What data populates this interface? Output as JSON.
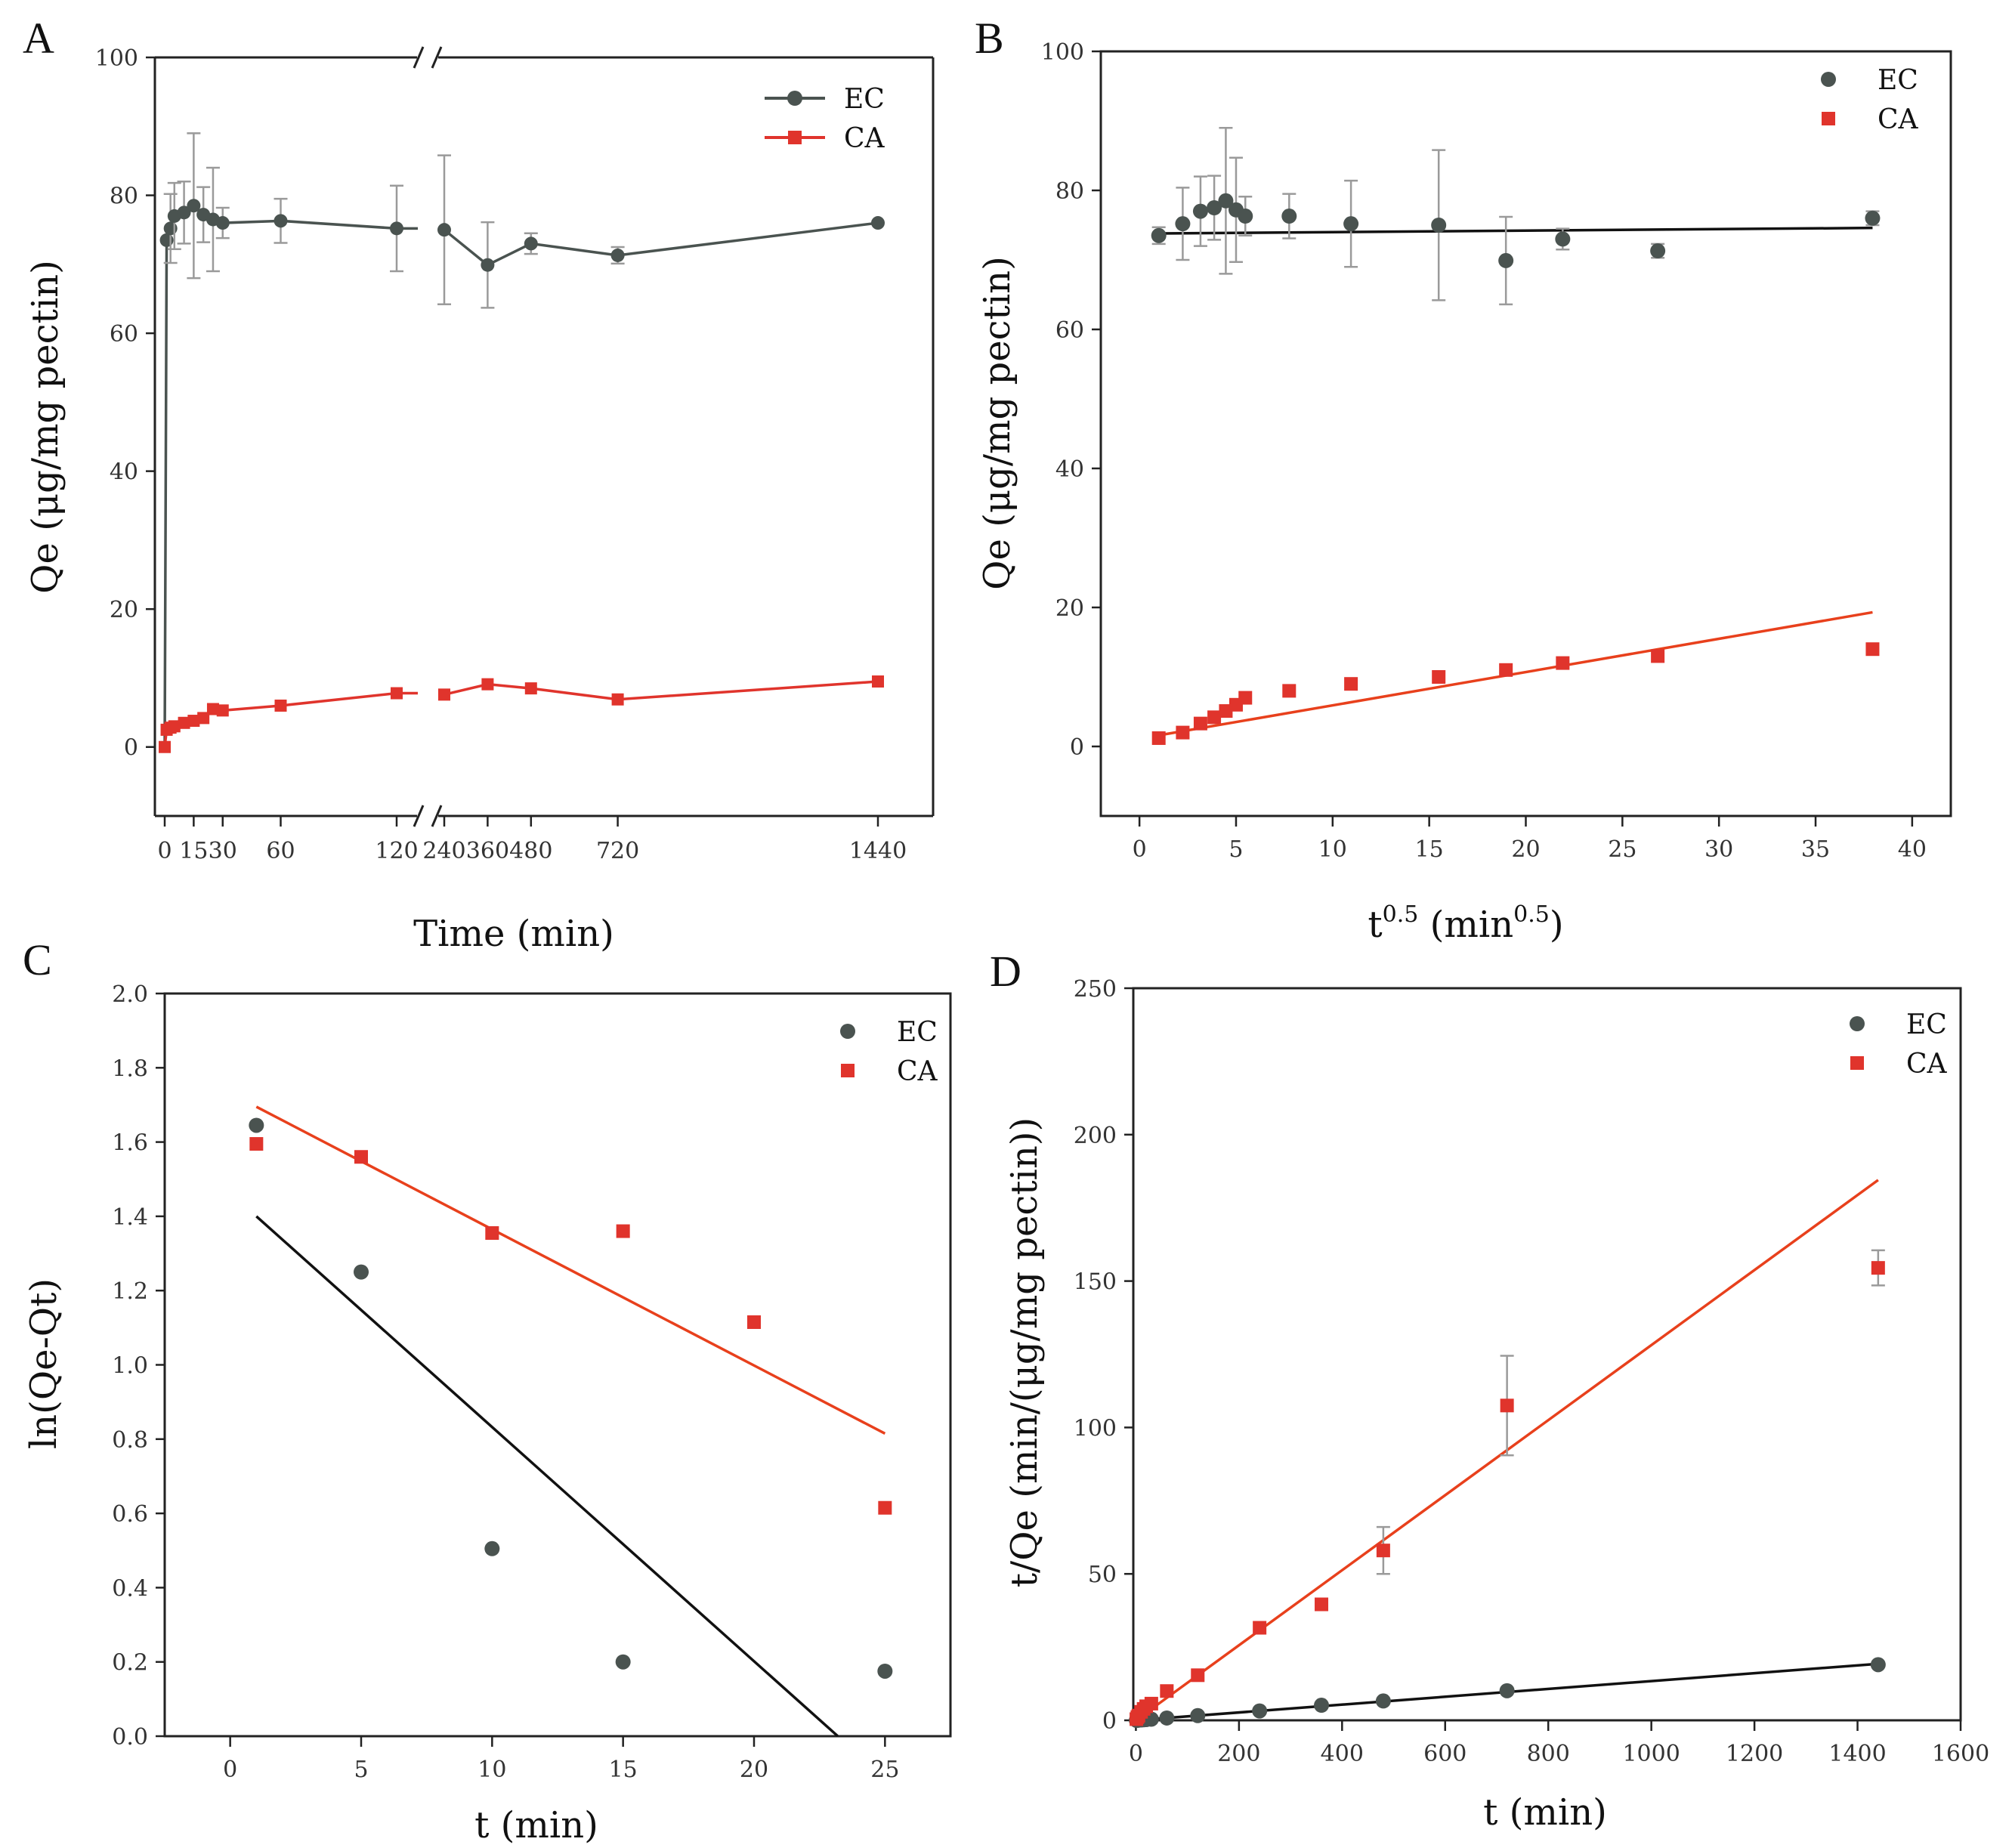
{
  "colors": {
    "ec": "#4a5350",
    "ca": "#e0342c",
    "fit_ec": "#111111",
    "fit_ca": "#e8401c",
    "err": "#9a9a9a"
  },
  "chart_data": [
    {
      "panel": "A",
      "type": "line",
      "xlabel": "Time (min)",
      "ylabel": "Qe (μg/mg pectin)",
      "ylim": [
        -10,
        100
      ],
      "y_ticks": [
        "0",
        "20",
        "40",
        "60",
        "80",
        "100"
      ],
      "x_axis": "broken",
      "x_tick_labels": [
        "0",
        "15",
        "30",
        "60",
        "120",
        "240",
        "360",
        "480",
        "720",
        "1440"
      ],
      "legend": [
        "EC",
        "CA"
      ],
      "legend_position": "top-right",
      "grid": false,
      "series": [
        {
          "name": "EC",
          "marker": "circle",
          "x": [
            0,
            1,
            3,
            5,
            10,
            15,
            20,
            25,
            30,
            60,
            120,
            240,
            360,
            480,
            720,
            1440
          ],
          "y": [
            0,
            73.5,
            75.2,
            77,
            77.5,
            78.5,
            77.2,
            76.5,
            76,
            76.3,
            75.2,
            75,
            69.9,
            73,
            71.3,
            76
          ],
          "err": [
            0,
            0,
            5,
            4.8,
            4.5,
            10.5,
            4,
            7.5,
            2.2,
            3.2,
            6.2,
            10.8,
            6.2,
            1.5,
            1.2,
            0
          ]
        },
        {
          "name": "CA",
          "marker": "square",
          "x": [
            0,
            1,
            3,
            5,
            10,
            15,
            20,
            25,
            30,
            60,
            120,
            240,
            360,
            480,
            720,
            1440
          ],
          "y": [
            0,
            2.5,
            2.8,
            3,
            3.5,
            3.8,
            4.2,
            5.5,
            5.3,
            6,
            7.8,
            7.6,
            9.1,
            8.5,
            6.9,
            9.5
          ],
          "err": []
        }
      ]
    },
    {
      "panel": "B",
      "type": "scatter",
      "xlabel": "t^0.5 (min^0.5)",
      "ylabel": "Qe (μg/mg pectin)",
      "xlim": [
        -2,
        42
      ],
      "ylim": [
        -10,
        100
      ],
      "x_ticks": [
        "0",
        "5",
        "10",
        "15",
        "20",
        "25",
        "30",
        "35",
        "40"
      ],
      "y_ticks": [
        "0",
        "20",
        "40",
        "60",
        "80",
        "100"
      ],
      "legend": [
        "EC",
        "CA"
      ],
      "legend_position": "top-right",
      "grid": false,
      "series": [
        {
          "name": "EC",
          "marker": "circle",
          "x": [
            1,
            2.24,
            3.16,
            3.87,
            4.47,
            5,
            5.48,
            7.75,
            10.95,
            15.49,
            18.97,
            21.91,
            26.83,
            37.95
          ],
          "y": [
            73.5,
            75.2,
            77,
            77.5,
            78.5,
            77.2,
            76.3,
            76.3,
            75.2,
            75,
            69.9,
            73,
            71.3,
            76
          ],
          "err": [
            1.2,
            5.2,
            5,
            4.6,
            10.5,
            7.5,
            2.8,
            3.2,
            6.2,
            10.8,
            6.3,
            1.5,
            1,
            1
          ],
          "fit": [
            [
              1,
              73.8
            ],
            [
              37.95,
              74.6
            ]
          ]
        },
        {
          "name": "CA",
          "marker": "square",
          "x": [
            1,
            2.24,
            3.16,
            3.87,
            4.47,
            5,
            5.48,
            7.75,
            10.95,
            15.49,
            18.97,
            21.91,
            26.83,
            37.95
          ],
          "y": [
            1.2,
            2,
            3.3,
            4.2,
            5.1,
            6,
            7,
            8,
            9,
            10,
            11,
            12,
            13,
            14
          ],
          "err": [],
          "fit": [
            [
              1,
              1.6
            ],
            [
              37.95,
              19.3
            ]
          ]
        }
      ]
    },
    {
      "panel": "C",
      "type": "scatter",
      "xlabel": "t (min)",
      "ylabel": "ln(Qe-Qt)",
      "xlim": [
        -2.5,
        27.5
      ],
      "ylim": [
        0,
        2.0
      ],
      "x_ticks": [
        "0",
        "5",
        "10",
        "15",
        "20",
        "25"
      ],
      "y_ticks": [
        "0.0",
        "0.2",
        "0.4",
        "0.6",
        "0.8",
        "1.0",
        "1.2",
        "1.4",
        "1.6",
        "1.8",
        "2.0"
      ],
      "legend": [
        "EC",
        "CA"
      ],
      "legend_position": "top-right",
      "grid": false,
      "series": [
        {
          "name": "EC",
          "marker": "circle",
          "x": [
            1,
            5,
            10,
            15,
            25
          ],
          "y": [
            1.645,
            1.25,
            0.505,
            0.2,
            0.175
          ],
          "fit": [
            [
              1,
              1.4
            ],
            [
              23.2,
              0
            ]
          ]
        },
        {
          "name": "CA",
          "marker": "square",
          "x": [
            1,
            5,
            10,
            15,
            20,
            25
          ],
          "y": [
            1.595,
            1.56,
            1.355,
            1.36,
            1.115,
            0.615
          ],
          "fit": [
            [
              1,
              1.695
            ],
            [
              25,
              0.815
            ]
          ]
        }
      ]
    },
    {
      "panel": "D",
      "type": "scatter",
      "xlabel": "t (min)",
      "ylabel": "t/Qe (min/(μg/mg pectin))",
      "xlim": [
        -5,
        1600
      ],
      "ylim": [
        0,
        250
      ],
      "x_ticks": [
        "0",
        "200",
        "400",
        "600",
        "800",
        "1000",
        "1200",
        "1400",
        "1600"
      ],
      "y_ticks": [
        "0",
        "50",
        "100",
        "150",
        "200",
        "250"
      ],
      "legend": [
        "EC",
        "CA"
      ],
      "legend_position": "top-right",
      "grid": false,
      "series": [
        {
          "name": "EC",
          "marker": "circle",
          "x": [
            1,
            3,
            5,
            10,
            15,
            20,
            30,
            60,
            120,
            240,
            360,
            480,
            720,
            1440
          ],
          "y": [
            0.01,
            0.04,
            0.06,
            0.13,
            0.19,
            0.26,
            0.4,
            0.79,
            1.6,
            3.2,
            5.15,
            6.6,
            10.1,
            19
          ],
          "err": [],
          "fit": [
            [
              0,
              0
            ],
            [
              1440,
              19.3
            ]
          ]
        },
        {
          "name": "CA",
          "marker": "square",
          "x": [
            1,
            3,
            5,
            10,
            15,
            20,
            30,
            60,
            120,
            240,
            360,
            480,
            720,
            1440
          ],
          "y": [
            0.4,
            1.1,
            1.6,
            2.9,
            3.9,
            4.8,
            5.7,
            10,
            15.4,
            31.6,
            39.6,
            58,
            107.5,
            154.5
          ],
          "err": [
            0,
            0,
            0,
            0,
            0,
            0,
            0,
            0,
            0,
            0,
            0,
            8,
            17,
            6
          ],
          "fit": [
            [
              0,
              0
            ],
            [
              1440,
              184.5
            ]
          ]
        }
      ]
    }
  ]
}
